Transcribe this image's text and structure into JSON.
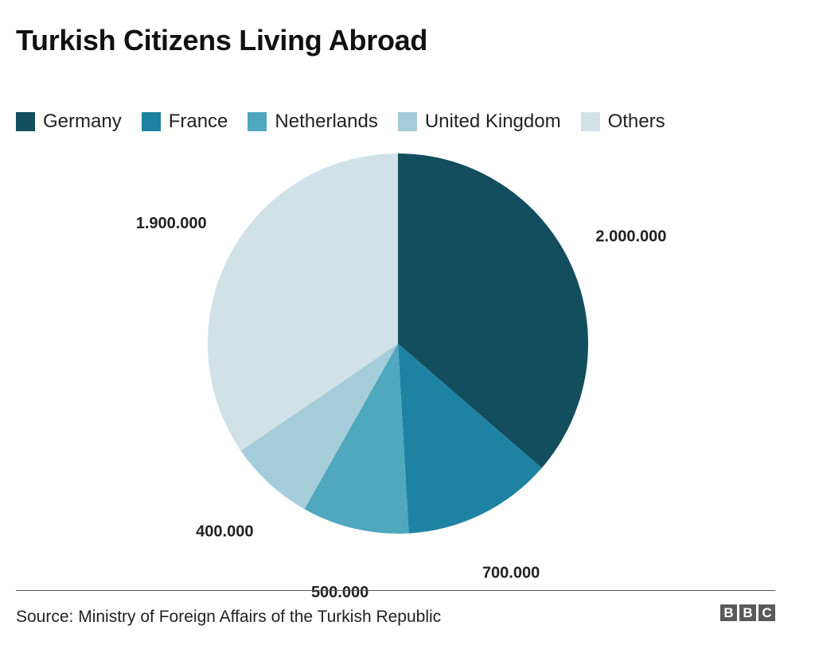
{
  "chart_data": {
    "type": "pie",
    "title": "Turkish Citizens Living Abroad",
    "categories": [
      "Germany",
      "France",
      "Netherlands",
      "United Kingdom",
      "Others"
    ],
    "values": [
      2000000,
      700000,
      500000,
      400000,
      1900000
    ],
    "value_labels": [
      "2.000.000",
      "700.000",
      "500.000",
      "400.000",
      "1.900.000"
    ],
    "colors": [
      "#134e5f",
      "#1e83a2",
      "#4fa8bd",
      "#a5cdd9",
      "#d0e2e7"
    ],
    "start": "12 o'clock",
    "direction": "clockwise",
    "legend_position": "top-left"
  },
  "footer": {
    "source": "Source: Ministry of Foreign Affairs of the Turkish Republic",
    "logo_letters": [
      "B",
      "B",
      "C"
    ]
  }
}
